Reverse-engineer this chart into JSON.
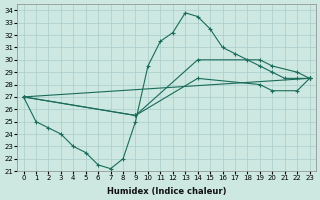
{
  "xlabel": "Humidex (Indice chaleur)",
  "background_color": "#cce8e0",
  "grid_color": "#aacccc",
  "line_color": "#1a6b5a",
  "xlim": [
    -0.5,
    23.5
  ],
  "ylim": [
    21,
    34.5
  ],
  "yticks": [
    21,
    22,
    23,
    24,
    25,
    26,
    27,
    28,
    29,
    30,
    31,
    32,
    33,
    34
  ],
  "xticks": [
    0,
    1,
    2,
    3,
    4,
    5,
    6,
    7,
    8,
    9,
    10,
    11,
    12,
    13,
    14,
    15,
    16,
    17,
    18,
    19,
    20,
    21,
    22,
    23
  ],
  "line1_x": [
    0,
    1,
    2,
    3,
    4,
    5,
    6,
    7,
    8,
    9,
    10,
    11,
    12,
    13,
    14,
    15,
    16,
    17,
    18,
    19,
    20,
    21,
    22,
    23
  ],
  "line1_y": [
    27,
    25,
    24.5,
    24,
    23,
    22.5,
    21.5,
    21.2,
    22,
    25,
    29.5,
    31.5,
    32.2,
    33.8,
    33.5,
    32.5,
    31,
    30.5,
    30,
    29.5,
    29,
    28.5,
    28.5,
    28.5
  ],
  "line2_x": [
    0,
    23
  ],
  "line2_y": [
    27,
    28.5
  ],
  "line3_x": [
    0,
    9,
    14,
    19,
    20,
    22,
    23
  ],
  "line3_y": [
    27,
    25.5,
    30.0,
    30.0,
    29.5,
    29.0,
    28.5
  ],
  "line4_x": [
    0,
    9,
    14,
    19,
    20,
    22,
    23
  ],
  "line4_y": [
    27,
    25.5,
    28.5,
    28.0,
    27.5,
    27.5,
    28.5
  ]
}
